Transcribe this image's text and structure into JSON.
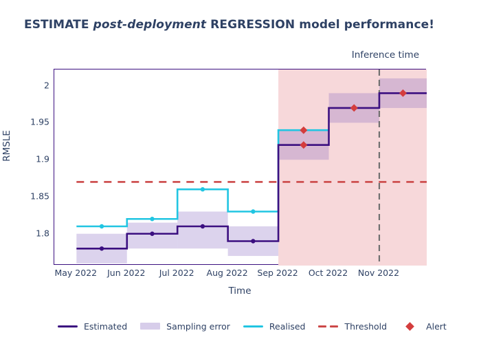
{
  "title": {
    "parts": [
      {
        "text": "ESTIMATE ",
        "style": "normal"
      },
      {
        "text": "post-deployment",
        "style": "italic"
      },
      {
        "text": " ",
        "style": "normal"
      },
      {
        "text": "REGRESSION",
        "style": "bold"
      },
      {
        "text": " model performance!",
        "style": "normal"
      }
    ],
    "plain": "ESTIMATE post-deployment REGRESSION model performance!"
  },
  "annotations": {
    "inference_time_label": "Inference time"
  },
  "legend": {
    "items": [
      {
        "label": "Estimated",
        "swatch": "solid-line"
      },
      {
        "label": "Sampling error",
        "swatch": "band"
      },
      {
        "label": "Realised",
        "swatch": "solid-line"
      },
      {
        "label": "Threshold",
        "swatch": "dashed-line"
      },
      {
        "label": "Alert",
        "swatch": "diamond"
      }
    ]
  },
  "colors": {
    "text": "#2e4164",
    "estimated": "#3b0f80",
    "sampling_error": "#8262be",
    "sampling_error_opacity": 0.28,
    "realised": "#21c5e2",
    "threshold": "#cc4848",
    "alert": "#d43d3d",
    "analysis_background": "#f7d8da",
    "inference_vline": "#707070",
    "plot_border": "#3b0f80"
  },
  "chart_data": {
    "type": "line",
    "subtype": "step-line-with-bands",
    "title": "ESTIMATE post-deployment REGRESSION model performance!",
    "xlabel": "Time",
    "ylabel": "RMSLE",
    "ylim": [
      1.757,
      2.022
    ],
    "x_domain_months": [
      -0.44,
      6.94
    ],
    "grid": false,
    "legend_position": "bottom",
    "y_ticks": [
      {
        "v": 2,
        "label": "2"
      },
      {
        "v": 1.95,
        "label": "1.95"
      },
      {
        "v": 1.9,
        "label": "1.9"
      },
      {
        "v": 1.85,
        "label": "1.85"
      },
      {
        "v": 1.8,
        "label": "1.8"
      }
    ],
    "x_ticks": [
      {
        "m": 0,
        "label": "May 2022"
      },
      {
        "m": 1,
        "label": "Jun 2022"
      },
      {
        "m": 2,
        "label": "Jul 2022"
      },
      {
        "m": 3,
        "label": "Aug 2022"
      },
      {
        "m": 4,
        "label": "Sep 2022"
      },
      {
        "m": 5,
        "label": "Oct 2022"
      },
      {
        "m": 6,
        "label": "Nov 2022"
      }
    ],
    "threshold": 1.87,
    "analysis_start_month": 4,
    "inference_vline_month": 6,
    "chunks": [
      {
        "period": "May 2022",
        "start": 0,
        "end": 1,
        "estimated": 1.78,
        "sampling_error": [
          1.76,
          1.8
        ],
        "realised": 1.81,
        "estimated_alert": false,
        "realised_alert": false
      },
      {
        "period": "Jun 2022",
        "start": 1,
        "end": 2,
        "estimated": 1.8,
        "sampling_error": [
          1.78,
          1.815
        ],
        "realised": 1.82,
        "estimated_alert": false,
        "realised_alert": false
      },
      {
        "period": "Jul 2022",
        "start": 2,
        "end": 3,
        "estimated": 1.81,
        "sampling_error": [
          1.78,
          1.83
        ],
        "realised": 1.86,
        "estimated_alert": false,
        "realised_alert": false
      },
      {
        "period": "Aug 2022",
        "start": 3,
        "end": 4,
        "estimated": 1.79,
        "sampling_error": [
          1.77,
          1.81
        ],
        "realised": 1.83,
        "estimated_alert": false,
        "realised_alert": false
      },
      {
        "period": "Sep 2022",
        "start": 4,
        "end": 5,
        "estimated": 1.92,
        "sampling_error": [
          1.9,
          1.94
        ],
        "realised": 1.94,
        "estimated_alert": true,
        "realised_alert": true
      },
      {
        "period": "Oct 2022",
        "start": 5,
        "end": 6,
        "estimated": 1.97,
        "sampling_error": [
          1.95,
          1.99
        ],
        "realised": null,
        "estimated_alert": true,
        "realised_alert": false
      },
      {
        "period": "Nov 2022",
        "start": 6,
        "end": 7,
        "estimated": 1.99,
        "sampling_error": [
          1.97,
          2.01
        ],
        "realised": null,
        "estimated_alert": true,
        "realised_alert": false
      }
    ]
  }
}
